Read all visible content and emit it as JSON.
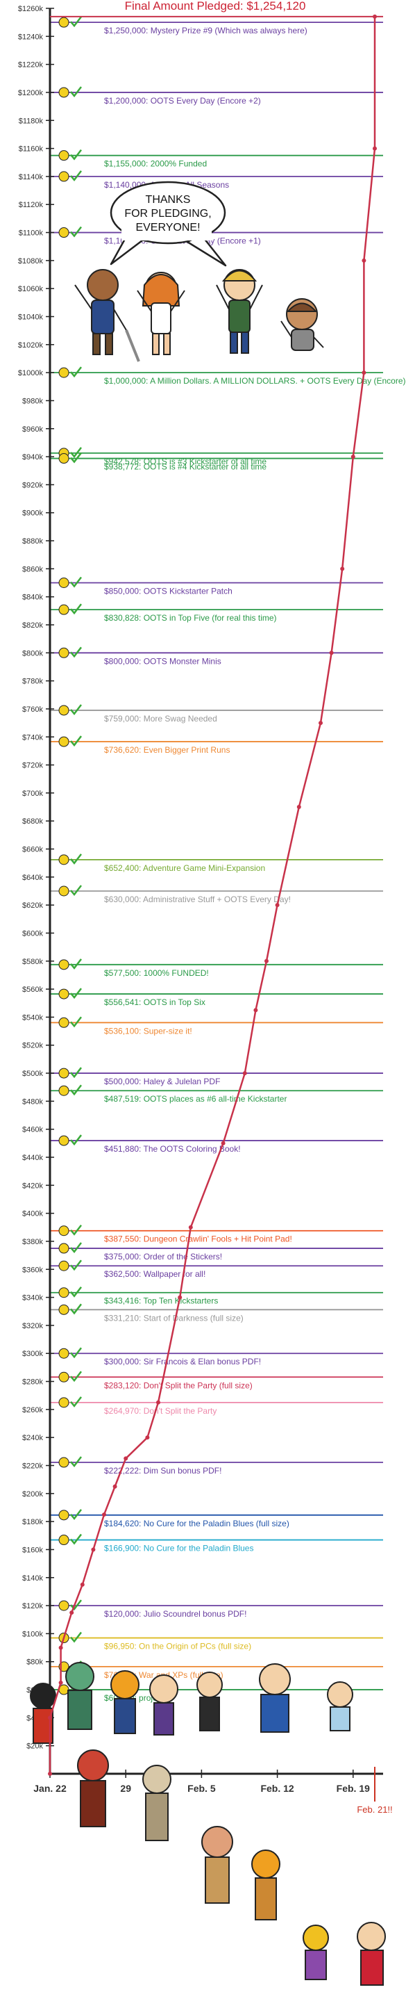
{
  "chart_data": {
    "type": "line",
    "title": "Final Amount Pledged: $1,254,120",
    "ylim": [
      0,
      1260000
    ],
    "ytick_step": 20000,
    "x_start": "2012-01-22",
    "x_ticks": [
      {
        "label": "Jan. 22",
        "date": "2012-01-22"
      },
      {
        "label": "29",
        "date": "2012-01-29"
      },
      {
        "label": "Feb. 5",
        "date": "2012-02-05"
      },
      {
        "label": "Feb. 12",
        "date": "2012-02-12"
      },
      {
        "label": "Feb. 19",
        "date": "2012-02-19"
      }
    ],
    "end_label": "Feb. 21!!",
    "end_date": "2012-02-21",
    "series": [
      {
        "color": "#c8324a",
        "points": [
          {
            "x": "2012-01-22",
            "y": 0
          },
          {
            "x": "2012-01-22",
            "y": 40000
          },
          {
            "x": "2012-01-23",
            "y": 65000
          },
          {
            "x": "2012-01-23",
            "y": 90000
          },
          {
            "x": "2012-01-24",
            "y": 115000
          },
          {
            "x": "2012-01-25",
            "y": 135000
          },
          {
            "x": "2012-01-26",
            "y": 160000
          },
          {
            "x": "2012-01-27",
            "y": 185000
          },
          {
            "x": "2012-01-28",
            "y": 205000
          },
          {
            "x": "2012-01-29",
            "y": 225000
          },
          {
            "x": "2012-01-31",
            "y": 240000
          },
          {
            "x": "2012-02-01",
            "y": 265000
          },
          {
            "x": "2012-02-03",
            "y": 340000
          },
          {
            "x": "2012-02-04",
            "y": 390000
          },
          {
            "x": "2012-02-07",
            "y": 450000
          },
          {
            "x": "2012-02-09",
            "y": 500000
          },
          {
            "x": "2012-02-10",
            "y": 545000
          },
          {
            "x": "2012-02-11",
            "y": 580000
          },
          {
            "x": "2012-02-12",
            "y": 620000
          },
          {
            "x": "2012-02-14",
            "y": 690000
          },
          {
            "x": "2012-02-16",
            "y": 750000
          },
          {
            "x": "2012-02-17",
            "y": 800000
          },
          {
            "x": "2012-02-18",
            "y": 860000
          },
          {
            "x": "2012-02-19",
            "y": 940000
          },
          {
            "x": "2012-02-20",
            "y": 1000000
          },
          {
            "x": "2012-02-20",
            "y": 1080000
          },
          {
            "x": "2012-02-21",
            "y": 1160000
          },
          {
            "x": "2012-02-21",
            "y": 1254120
          }
        ]
      }
    ],
    "milestones": [
      {
        "value": 1250000,
        "label": "$1,250,000: Mystery Prize #9 (Which was always here)",
        "color": "#6a3fa0"
      },
      {
        "value": 1200000,
        "label": "$1,200,000: OOTS Every Day (Encore +2)",
        "color": "#6a3fa0"
      },
      {
        "value": 1155000,
        "label": "$1,155,000: 2000% Funded",
        "color": "#2a9a48"
      },
      {
        "value": 1140000,
        "label": "$1,140,000: Audio for All Seasons",
        "color": "#6a3fa0"
      },
      {
        "value": 1100000,
        "label": "$1,100,000: OOTS Every Day (Encore +1)",
        "color": "#6a3fa0"
      },
      {
        "value": 1000000,
        "label": "$1,000,000: A Million Dollars. A MILLION DOLLARS. + OOTS Every Day (Encore)",
        "color": "#2a9a48"
      },
      {
        "value": 942578,
        "label": "$942,578: OOTS is #3 Kickstarter of all time",
        "color": "#2a9a48"
      },
      {
        "value": 938772,
        "label": "$938,772: OOTS is #4 Kickstarter of all time",
        "color": "#2a9a48"
      },
      {
        "value": 850000,
        "label": "$850,000: OOTS Kickstarter Patch",
        "color": "#6a3fa0"
      },
      {
        "value": 830828,
        "label": "$830,828: OOTS in Top Five (for real this time)",
        "color": "#2a9a48"
      },
      {
        "value": 800000,
        "label": "$800,000: OOTS Monster Minis",
        "color": "#6a3fa0"
      },
      {
        "value": 759000,
        "label": "$759,000: More Swag Needed",
        "color": "#999999"
      },
      {
        "value": 736620,
        "label": "$736,620: Even Bigger Print Runs",
        "color": "#ee8833"
      },
      {
        "value": 652400,
        "label": "$652,400: Adventure Game Mini-Expansion",
        "color": "#77aa33"
      },
      {
        "value": 630000,
        "label": "$630,000: Administrative Stuff + OOTS Every Day!",
        "color": "#999999"
      },
      {
        "value": 577500,
        "label": "$577,500: 1000% FUNDED!",
        "color": "#2a9a48"
      },
      {
        "value": 556541,
        "label": "$556,541: OOTS in Top Six",
        "color": "#2a9a48"
      },
      {
        "value": 536100,
        "label": "$536,100: Super-size it!",
        "color": "#ee8833"
      },
      {
        "value": 500000,
        "label": "$500,000: Haley & Julelan PDF",
        "color": "#6a3fa0"
      },
      {
        "value": 487519,
        "label": "$487,519: OOTS places as #6 all-time Kickstarter",
        "color": "#2a9a48"
      },
      {
        "value": 451880,
        "label": "$451,880: The OOTS Coloring Book!",
        "color": "#6a3fa0"
      },
      {
        "value": 387550,
        "label": "$387,550: Dungeon Crawlin' Fools + Hit Point Pad!",
        "color": "#ee5522"
      },
      {
        "value": 375000,
        "label": "$375,000: Order of the Stickers!",
        "color": "#6a3fa0"
      },
      {
        "value": 362500,
        "label": "$362,500: Wallpaper for all!",
        "color": "#6a3fa0"
      },
      {
        "value": 343416,
        "label": "$343,416: Top Ten Kickstarters",
        "color": "#2a9a48"
      },
      {
        "value": 331210,
        "label": "$331,210: Start of Darkness (full size)",
        "color": "#999999"
      },
      {
        "value": 300000,
        "label": "$300,000: Sir Francois & Elan bonus PDF!",
        "color": "#6a3fa0"
      },
      {
        "value": 283120,
        "label": "$283,120: Don't Split the Party (full size)",
        "color": "#cc3355"
      },
      {
        "value": 264970,
        "label": "$264,970: Don't Split the Party",
        "color": "#ee88aa"
      },
      {
        "value": 222222,
        "label": "$222,222: Dim Sun bonus PDF!",
        "color": "#6a3fa0"
      },
      {
        "value": 184620,
        "label": "$184,620: No Cure for the Paladin Blues (full size)",
        "color": "#2255aa"
      },
      {
        "value": 166900,
        "label": "$166,900: No Cure for the Paladin Blues",
        "color": "#22aacc"
      },
      {
        "value": 120000,
        "label": "$120,000: Julio Scoundrel bonus PDF!",
        "color": "#6a3fa0"
      },
      {
        "value": 96950,
        "label": "$96,950: On the Origin of PCs (full size)",
        "color": "#ddbb22"
      },
      {
        "value": 76450,
        "label": "$76,450: War and XPs (full size)",
        "color": "#ee8833"
      },
      {
        "value": 60000,
        "label": "$60,000: project",
        "color": "#2a9a48"
      }
    ]
  },
  "bubble_text": [
    "THANKS",
    "FOR PLEDGING,",
    "EVERYONE!"
  ]
}
